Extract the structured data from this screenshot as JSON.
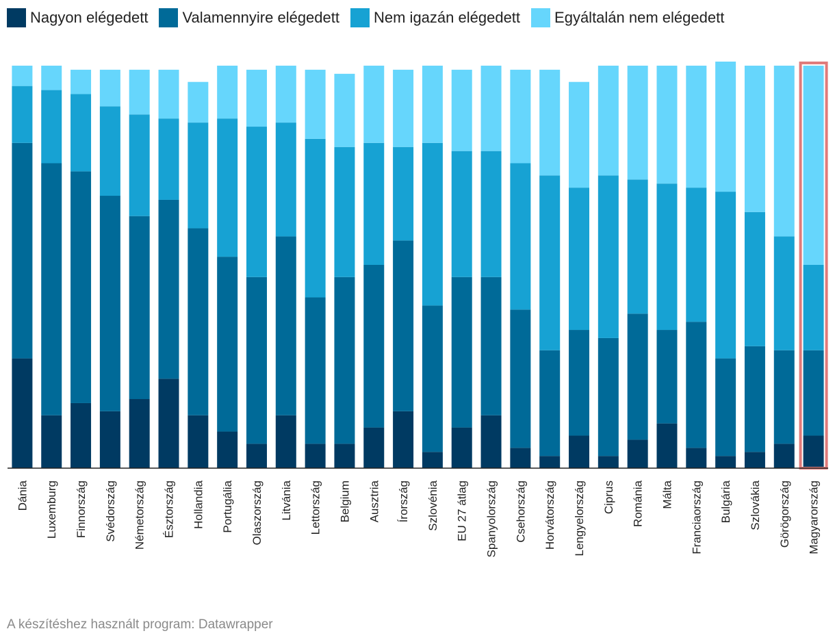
{
  "chart_data": {
    "type": "bar",
    "stacked": true,
    "title": "",
    "xlabel": "",
    "ylabel": "",
    "ylim": [
      0,
      100
    ],
    "grid": false,
    "legend_position": "top",
    "highlight": "Magyarország",
    "categories": [
      "Dánia",
      "Luxemburg",
      "Finnország",
      "Svédország",
      "Németország",
      "Észtország",
      "Hollandia",
      "Portugália",
      "Olaszország",
      "Litvánia",
      "Lettország",
      "Belgium",
      "Ausztria",
      "Írország",
      "Szlovénia",
      "EU 27 átlag",
      "Spanyolország",
      "Csehország",
      "Horvátország",
      "Lengyelország",
      "Ciprus",
      "Románia",
      "Málta",
      "Franciaország",
      "Bulgária",
      "Szlovákia",
      "Görögország",
      "Magyarország"
    ],
    "series": [
      {
        "name": "Nagyon elégedett",
        "color": "#003a62",
        "values": [
          27,
          13,
          16,
          14,
          17,
          22,
          13,
          9,
          6,
          13,
          6,
          6,
          10,
          14,
          4,
          10,
          13,
          5,
          3,
          8,
          3,
          7,
          11,
          5,
          3,
          4,
          6,
          8
        ]
      },
      {
        "name": "Valamennyire elégedett",
        "color": "#006a98",
        "values": [
          53,
          62,
          57,
          53,
          45,
          44,
          46,
          43,
          41,
          44,
          36,
          41,
          40,
          42,
          36,
          37,
          34,
          34,
          26,
          26,
          29,
          31,
          23,
          31,
          24,
          26,
          23,
          21
        ]
      },
      {
        "name": "Nem igazán elégedett",
        "color": "#17a2d3",
        "values": [
          14,
          18,
          19,
          22,
          25,
          20,
          26,
          34,
          37,
          28,
          39,
          32,
          30,
          23,
          40,
          31,
          31,
          36,
          43,
          35,
          40,
          33,
          36,
          33,
          41,
          33,
          28,
          21
        ]
      },
      {
        "name": "Egyáltalán nem elégedett",
        "color": "#66d6fc",
        "values": [
          5,
          6,
          6,
          9,
          11,
          12,
          10,
          13,
          14,
          14,
          17,
          18,
          19,
          19,
          19,
          20,
          21,
          23,
          26,
          26,
          27,
          28,
          29,
          30,
          32,
          36,
          42,
          49
        ]
      }
    ]
  },
  "legend": [
    {
      "label": "Nagyon elégedett",
      "color": "#003a62"
    },
    {
      "label": "Valamennyire elégedett",
      "color": "#006a98"
    },
    {
      "label": "Nem igazán elégedett",
      "color": "#17a2d3"
    },
    {
      "label": "Egyáltalán nem elégedett",
      "color": "#66d6fc"
    }
  ],
  "footer": "A készítéshez használt program: Datawrapper"
}
